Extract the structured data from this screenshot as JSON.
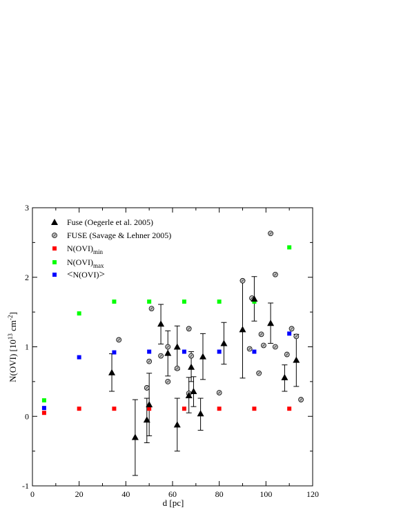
{
  "chart_data": {
    "type": "scatter",
    "xlabel": "d [pc]",
    "ylabel": "N(OVI) [10",
    "ylabel_sup": "13",
    "ylabel_unit": " cm",
    "ylabel_unit_sup": "-2",
    "ylabel_close": "]",
    "xlim": [
      0,
      120
    ],
    "ylim": [
      -1,
      3
    ],
    "xticks": [
      0,
      20,
      40,
      60,
      80,
      100,
      120
    ],
    "yticks": [
      -1,
      0,
      1,
      2,
      3
    ],
    "grid": false,
    "legend_position": "top-left",
    "colors": {
      "nmin": "#ff0000",
      "nmax": "#00ff00",
      "navg": "#0000ff",
      "fuse_savage": "#bfbfbf",
      "axis": "#000000"
    },
    "series": [
      {
        "id": "oegerle",
        "name": "Fuse (Oegerle et al. 2005)",
        "marker": "triangle",
        "points": [
          {
            "x": 34,
            "y": 0.63,
            "lo": 0.36,
            "hi": 0.9
          },
          {
            "x": 44,
            "y": -0.3,
            "lo": -0.85,
            "hi": 0.24
          },
          {
            "x": 49,
            "y": -0.05,
            "lo": -0.38,
            "hi": 0.26
          },
          {
            "x": 50,
            "y": 0.17,
            "lo": -0.28,
            "hi": 0.62
          },
          {
            "x": 55,
            "y": 1.33,
            "lo": 1.04,
            "hi": 1.61
          },
          {
            "x": 58,
            "y": 0.91,
            "lo": 0.58,
            "hi": 1.23
          },
          {
            "x": 62,
            "y": -0.12,
            "lo": -0.5,
            "hi": 0.26
          },
          {
            "x": 62,
            "y": 1.0,
            "lo": 0.67,
            "hi": 1.3
          },
          {
            "x": 67,
            "y": 0.3,
            "lo": 0.05,
            "hi": 0.56
          },
          {
            "x": 68,
            "y": 0.71,
            "lo": 0.5,
            "hi": 0.93
          },
          {
            "x": 69,
            "y": 0.36,
            "lo": 0.14,
            "hi": 0.57
          },
          {
            "x": 72,
            "y": 0.04,
            "lo": -0.2,
            "hi": 0.26
          },
          {
            "x": 73,
            "y": 0.86,
            "lo": 0.53,
            "hi": 1.19
          },
          {
            "x": 82,
            "y": 1.05,
            "lo": 0.75,
            "hi": 1.35
          },
          {
            "x": 90,
            "y": 1.25,
            "lo": 0.55,
            "hi": 1.95
          },
          {
            "x": 95,
            "y": 1.69,
            "lo": 1.37,
            "hi": 2.01
          },
          {
            "x": 102,
            "y": 1.34,
            "lo": 1.05,
            "hi": 1.63
          },
          {
            "x": 108,
            "y": 0.56,
            "lo": 0.36,
            "hi": 0.74
          },
          {
            "x": 113,
            "y": 0.81,
            "lo": 0.43,
            "hi": 1.18
          }
        ]
      },
      {
        "id": "savage",
        "name": "FUSE (Savage & Lehner 2005)",
        "marker": "circle",
        "points": [
          {
            "x": 37,
            "y": 1.1
          },
          {
            "x": 49,
            "y": 0.41
          },
          {
            "x": 50,
            "y": 0.79
          },
          {
            "x": 51,
            "y": 1.55
          },
          {
            "x": 55,
            "y": 0.87
          },
          {
            "x": 58,
            "y": 1.0
          },
          {
            "x": 58,
            "y": 0.5
          },
          {
            "x": 62,
            "y": 0.69
          },
          {
            "x": 67,
            "y": 1.26
          },
          {
            "x": 67,
            "y": 0.33
          },
          {
            "x": 68,
            "y": 0.87
          },
          {
            "x": 80,
            "y": 0.34
          },
          {
            "x": 90,
            "y": 1.95
          },
          {
            "x": 93,
            "y": 0.97
          },
          {
            "x": 94,
            "y": 1.7
          },
          {
            "x": 97,
            "y": 0.62
          },
          {
            "x": 98,
            "y": 1.18
          },
          {
            "x": 99,
            "y": 1.02
          },
          {
            "x": 102,
            "y": 2.63
          },
          {
            "x": 104,
            "y": 2.04
          },
          {
            "x": 104,
            "y": 1.0
          },
          {
            "x": 109,
            "y": 0.89
          },
          {
            "x": 111,
            "y": 1.26
          },
          {
            "x": 113,
            "y": 1.15
          },
          {
            "x": 115,
            "y": 0.24
          }
        ]
      },
      {
        "id": "nmin",
        "name": "N(OVI)",
        "name_sub": "min",
        "marker": "square",
        "points": [
          {
            "x": 5,
            "y": 0.05
          },
          {
            "x": 20,
            "y": 0.11
          },
          {
            "x": 35,
            "y": 0.11
          },
          {
            "x": 50,
            "y": 0.11
          },
          {
            "x": 65,
            "y": 0.11
          },
          {
            "x": 80,
            "y": 0.11
          },
          {
            "x": 95,
            "y": 0.11
          },
          {
            "x": 110,
            "y": 0.11
          }
        ]
      },
      {
        "id": "nmax",
        "name": "N(OVI)",
        "name_sub": "max",
        "marker": "square",
        "points": [
          {
            "x": 5,
            "y": 0.23
          },
          {
            "x": 20,
            "y": 1.48
          },
          {
            "x": 35,
            "y": 1.65
          },
          {
            "x": 50,
            "y": 1.65
          },
          {
            "x": 65,
            "y": 1.65
          },
          {
            "x": 80,
            "y": 1.65
          },
          {
            "x": 95,
            "y": 1.65
          },
          {
            "x": 110,
            "y": 2.43
          }
        ]
      },
      {
        "id": "navg",
        "name": "N(OVI)",
        "name_left": "<",
        "name_right": ">",
        "marker": "square",
        "points": [
          {
            "x": 5,
            "y": 0.12
          },
          {
            "x": 20,
            "y": 0.85
          },
          {
            "x": 35,
            "y": 0.92
          },
          {
            "x": 50,
            "y": 0.93
          },
          {
            "x": 65,
            "y": 0.93
          },
          {
            "x": 80,
            "y": 0.93
          },
          {
            "x": 95,
            "y": 0.93
          },
          {
            "x": 110,
            "y": 1.19
          }
        ]
      }
    ]
  }
}
